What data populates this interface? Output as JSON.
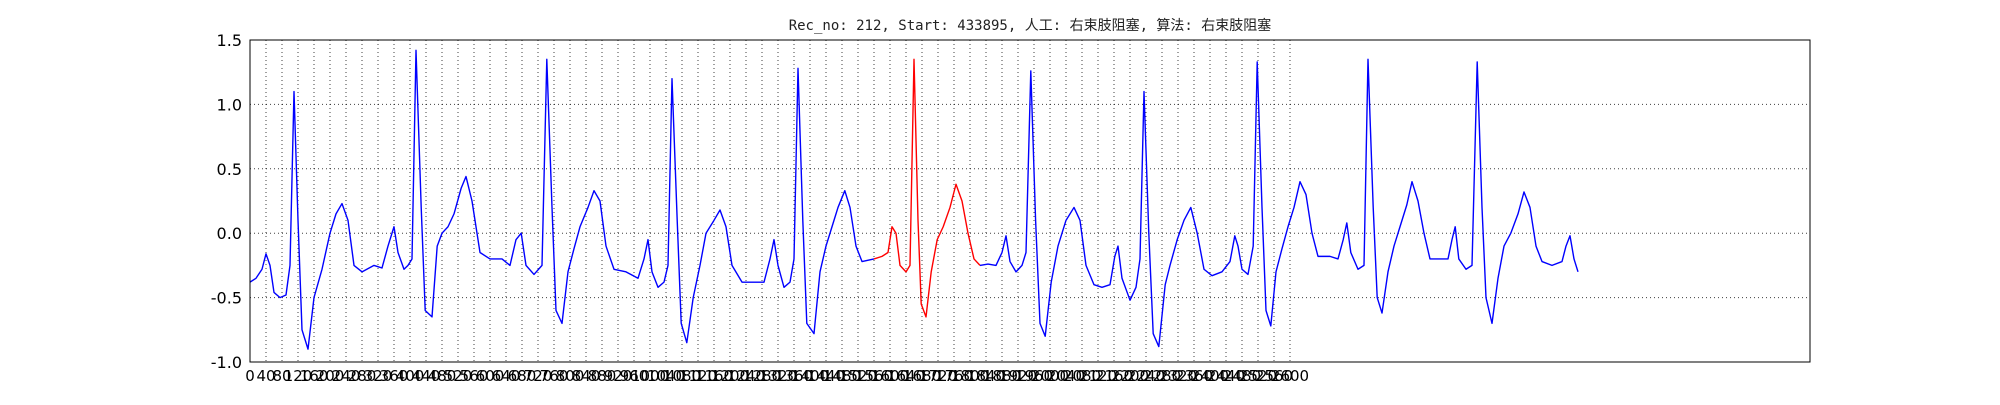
{
  "chart_data": {
    "type": "line",
    "title": "Rec_no: 212, Start: 433895, 人工: 右束肢阻塞, 算法: 右束肢阻塞",
    "xlabel": "",
    "ylabel": "",
    "xlim": [
      0,
      3900
    ],
    "ylim": [
      -1.0,
      1.5
    ],
    "grid": true,
    "yticks": [
      -1.0,
      -0.5,
      0.0,
      0.5,
      1.0,
      1.5
    ],
    "ytick_labels": [
      "-1.0",
      "-0.5",
      "0.0",
      "0.5",
      "1.0",
      "1.5"
    ],
    "xticks": [
      0,
      40,
      80,
      120,
      160,
      200,
      240,
      280,
      320,
      360,
      400,
      440,
      480,
      520,
      560,
      600,
      640,
      680,
      720,
      760,
      800,
      840,
      880,
      920,
      960,
      1000,
      1040,
      1080,
      1120,
      1160,
      1200,
      1240,
      1280,
      1320,
      1360,
      1400,
      1440,
      1480,
      1520,
      1560,
      1600,
      1640,
      1680,
      1720,
      1760,
      1800,
      1840,
      1880,
      1920,
      1960,
      2000,
      2040,
      2080,
      2120,
      2160,
      2200,
      2240,
      2280,
      2320,
      2360,
      2400,
      2440,
      2480,
      2520,
      2560,
      2600
    ],
    "colors": {
      "normal": "#0000ff",
      "highlight": "#ff0000"
    },
    "series": [
      {
        "color": "#0000ff",
        "points": [
          [
            0,
            -0.38
          ],
          [
            15,
            -0.35
          ],
          [
            30,
            -0.28
          ],
          [
            40,
            -0.16
          ],
          [
            50,
            -0.25
          ],
          [
            60,
            -0.46
          ],
          [
            75,
            -0.5
          ],
          [
            90,
            -0.48
          ],
          [
            100,
            -0.25
          ],
          [
            110,
            1.1
          ],
          [
            120,
            0.1
          ],
          [
            130,
            -0.75
          ],
          [
            145,
            -0.9
          ],
          [
            160,
            -0.5
          ],
          [
            180,
            -0.28
          ],
          [
            200,
            0.0
          ],
          [
            215,
            0.15
          ],
          [
            230,
            0.23
          ],
          [
            245,
            0.1
          ],
          [
            260,
            -0.25
          ],
          [
            280,
            -0.3
          ],
          [
            310,
            -0.25
          ],
          [
            330,
            -0.27
          ],
          [
            345,
            -0.1
          ],
          [
            360,
            0.05
          ],
          [
            370,
            -0.15
          ],
          [
            385,
            -0.28
          ],
          [
            395,
            -0.25
          ],
          [
            405,
            -0.2
          ],
          [
            415,
            1.42
          ],
          [
            428,
            0.2
          ],
          [
            438,
            -0.6
          ],
          [
            455,
            -0.65
          ],
          [
            468,
            -0.1
          ],
          [
            480,
            0.0
          ],
          [
            495,
            0.05
          ],
          [
            510,
            0.15
          ],
          [
            528,
            0.35
          ],
          [
            540,
            0.44
          ],
          [
            555,
            0.25
          ],
          [
            575,
            -0.15
          ],
          [
            600,
            -0.2
          ],
          [
            630,
            -0.2
          ],
          [
            650,
            -0.25
          ],
          [
            665,
            -0.05
          ],
          [
            678,
            0.0
          ],
          [
            690,
            -0.25
          ],
          [
            710,
            -0.32
          ],
          [
            730,
            -0.25
          ],
          [
            742,
            1.35
          ],
          [
            755,
            0.2
          ],
          [
            765,
            -0.6
          ],
          [
            780,
            -0.7
          ],
          [
            795,
            -0.3
          ],
          [
            810,
            -0.12
          ],
          [
            825,
            0.05
          ],
          [
            845,
            0.2
          ],
          [
            860,
            0.33
          ],
          [
            875,
            0.25
          ],
          [
            890,
            -0.1
          ],
          [
            910,
            -0.28
          ],
          [
            940,
            -0.3
          ],
          [
            970,
            -0.35
          ],
          [
            985,
            -0.2
          ],
          [
            995,
            -0.05
          ],
          [
            1005,
            -0.3
          ],
          [
            1020,
            -0.42
          ],
          [
            1035,
            -0.38
          ],
          [
            1045,
            -0.25
          ],
          [
            1055,
            1.2
          ],
          [
            1068,
            0.1
          ],
          [
            1078,
            -0.7
          ],
          [
            1092,
            -0.85
          ],
          [
            1108,
            -0.5
          ],
          [
            1125,
            -0.25
          ],
          [
            1140,
            0.0
          ],
          [
            1160,
            0.1
          ],
          [
            1175,
            0.18
          ],
          [
            1190,
            0.05
          ],
          [
            1205,
            -0.25
          ],
          [
            1230,
            -0.38
          ],
          [
            1260,
            -0.38
          ],
          [
            1285,
            -0.38
          ],
          [
            1300,
            -0.2
          ],
          [
            1310,
            -0.05
          ],
          [
            1320,
            -0.25
          ],
          [
            1335,
            -0.42
          ],
          [
            1350,
            -0.38
          ],
          [
            1360,
            -0.2
          ],
          [
            1370,
            1.28
          ],
          [
            1382,
            0.1
          ],
          [
            1392,
            -0.7
          ],
          [
            1410,
            -0.78
          ],
          [
            1425,
            -0.3
          ],
          [
            1440,
            -0.1
          ],
          [
            1455,
            0.05
          ],
          [
            1470,
            0.2
          ],
          [
            1487,
            0.33
          ],
          [
            1500,
            0.2
          ],
          [
            1515,
            -0.1
          ],
          [
            1530,
            -0.22
          ],
          [
            1560,
            -0.2
          ]
        ]
      },
      {
        "color": "#ff0000",
        "points": [
          [
            1560,
            -0.2
          ],
          [
            1580,
            -0.18
          ],
          [
            1595,
            -0.15
          ],
          [
            1605,
            0.05
          ],
          [
            1615,
            0.0
          ],
          [
            1625,
            -0.25
          ],
          [
            1640,
            -0.3
          ],
          [
            1650,
            -0.25
          ],
          [
            1660,
            1.35
          ],
          [
            1670,
            0.1
          ],
          [
            1678,
            -0.55
          ],
          [
            1690,
            -0.65
          ],
          [
            1703,
            -0.3
          ],
          [
            1718,
            -0.05
          ],
          [
            1733,
            0.05
          ],
          [
            1750,
            0.2
          ],
          [
            1765,
            0.38
          ],
          [
            1780,
            0.25
          ],
          [
            1795,
            0.0
          ],
          [
            1810,
            -0.2
          ],
          [
            1825,
            -0.25
          ]
        ]
      },
      {
        "color": "#0000ff",
        "points": [
          [
            1825,
            -0.25
          ],
          [
            1845,
            -0.24
          ],
          [
            1865,
            -0.25
          ],
          [
            1880,
            -0.15
          ],
          [
            1890,
            -0.02
          ],
          [
            1900,
            -0.22
          ],
          [
            1915,
            -0.3
          ],
          [
            1930,
            -0.25
          ],
          [
            1940,
            -0.15
          ],
          [
            1952,
            1.26
          ],
          [
            1964,
            0.1
          ],
          [
            1975,
            -0.7
          ],
          [
            1988,
            -0.8
          ],
          [
            2003,
            -0.38
          ],
          [
            2020,
            -0.1
          ],
          [
            2040,
            0.1
          ],
          [
            2060,
            0.2
          ],
          [
            2075,
            0.1
          ],
          [
            2090,
            -0.25
          ],
          [
            2110,
            -0.4
          ],
          [
            2130,
            -0.42
          ],
          [
            2150,
            -0.4
          ],
          [
            2162,
            -0.18
          ],
          [
            2170,
            -0.1
          ],
          [
            2180,
            -0.35
          ],
          [
            2200,
            -0.52
          ],
          [
            2215,
            -0.42
          ],
          [
            2225,
            -0.2
          ],
          [
            2235,
            1.1
          ],
          [
            2247,
            0.0
          ],
          [
            2258,
            -0.78
          ],
          [
            2272,
            -0.88
          ],
          [
            2288,
            -0.4
          ],
          [
            2300,
            -0.25
          ],
          [
            2318,
            -0.05
          ],
          [
            2335,
            0.1
          ],
          [
            2352,
            0.2
          ],
          [
            2368,
            0.0
          ],
          [
            2385,
            -0.28
          ],
          [
            2405,
            -0.33
          ],
          [
            2430,
            -0.3
          ],
          [
            2450,
            -0.22
          ],
          [
            2462,
            -0.02
          ],
          [
            2470,
            -0.1
          ],
          [
            2480,
            -0.28
          ],
          [
            2495,
            -0.32
          ],
          [
            2508,
            -0.1
          ],
          [
            2518,
            1.33
          ],
          [
            2530,
            0.2
          ],
          [
            2540,
            -0.6
          ],
          [
            2552,
            -0.72
          ],
          [
            2565,
            -0.3
          ],
          [
            2580,
            -0.12
          ],
          [
            2595,
            0.05
          ],
          [
            2610,
            0.2
          ],
          [
            2625,
            0.4
          ],
          [
            2640,
            0.3
          ],
          [
            2655,
            0.0
          ],
          [
            2670,
            -0.18
          ],
          [
            2700,
            -0.18
          ],
          [
            2720,
            -0.2
          ],
          [
            2733,
            -0.05
          ],
          [
            2742,
            0.08
          ],
          [
            2752,
            -0.15
          ],
          [
            2770,
            -0.28
          ],
          [
            2785,
            -0.25
          ],
          [
            2795,
            1.35
          ],
          [
            2808,
            0.2
          ],
          [
            2818,
            -0.5
          ],
          [
            2830,
            -0.62
          ],
          [
            2845,
            -0.3
          ],
          [
            2860,
            -0.1
          ],
          [
            2875,
            0.05
          ],
          [
            2892,
            0.22
          ],
          [
            2905,
            0.4
          ],
          [
            2920,
            0.25
          ],
          [
            2935,
            0.0
          ],
          [
            2950,
            -0.2
          ],
          [
            2975,
            -0.2
          ],
          [
            2995,
            -0.2
          ],
          [
            3005,
            -0.05
          ],
          [
            3013,
            0.05
          ],
          [
            3022,
            -0.2
          ],
          [
            3040,
            -0.28
          ],
          [
            3055,
            -0.25
          ],
          [
            3068,
            1.33
          ],
          [
            3080,
            0.2
          ],
          [
            3090,
            -0.5
          ],
          [
            3105,
            -0.7
          ],
          [
            3120,
            -0.35
          ],
          [
            3135,
            -0.1
          ],
          [
            3152,
            0.0
          ],
          [
            3170,
            0.15
          ],
          [
            3185,
            0.32
          ],
          [
            3200,
            0.2
          ],
          [
            3215,
            -0.1
          ],
          [
            3230,
            -0.22
          ],
          [
            3255,
            -0.25
          ],
          [
            3280,
            -0.22
          ],
          [
            3290,
            -0.1
          ],
          [
            3300,
            -0.02
          ],
          [
            3310,
            -0.2
          ],
          [
            3320,
            -0.3
          ]
        ]
      }
    ]
  }
}
